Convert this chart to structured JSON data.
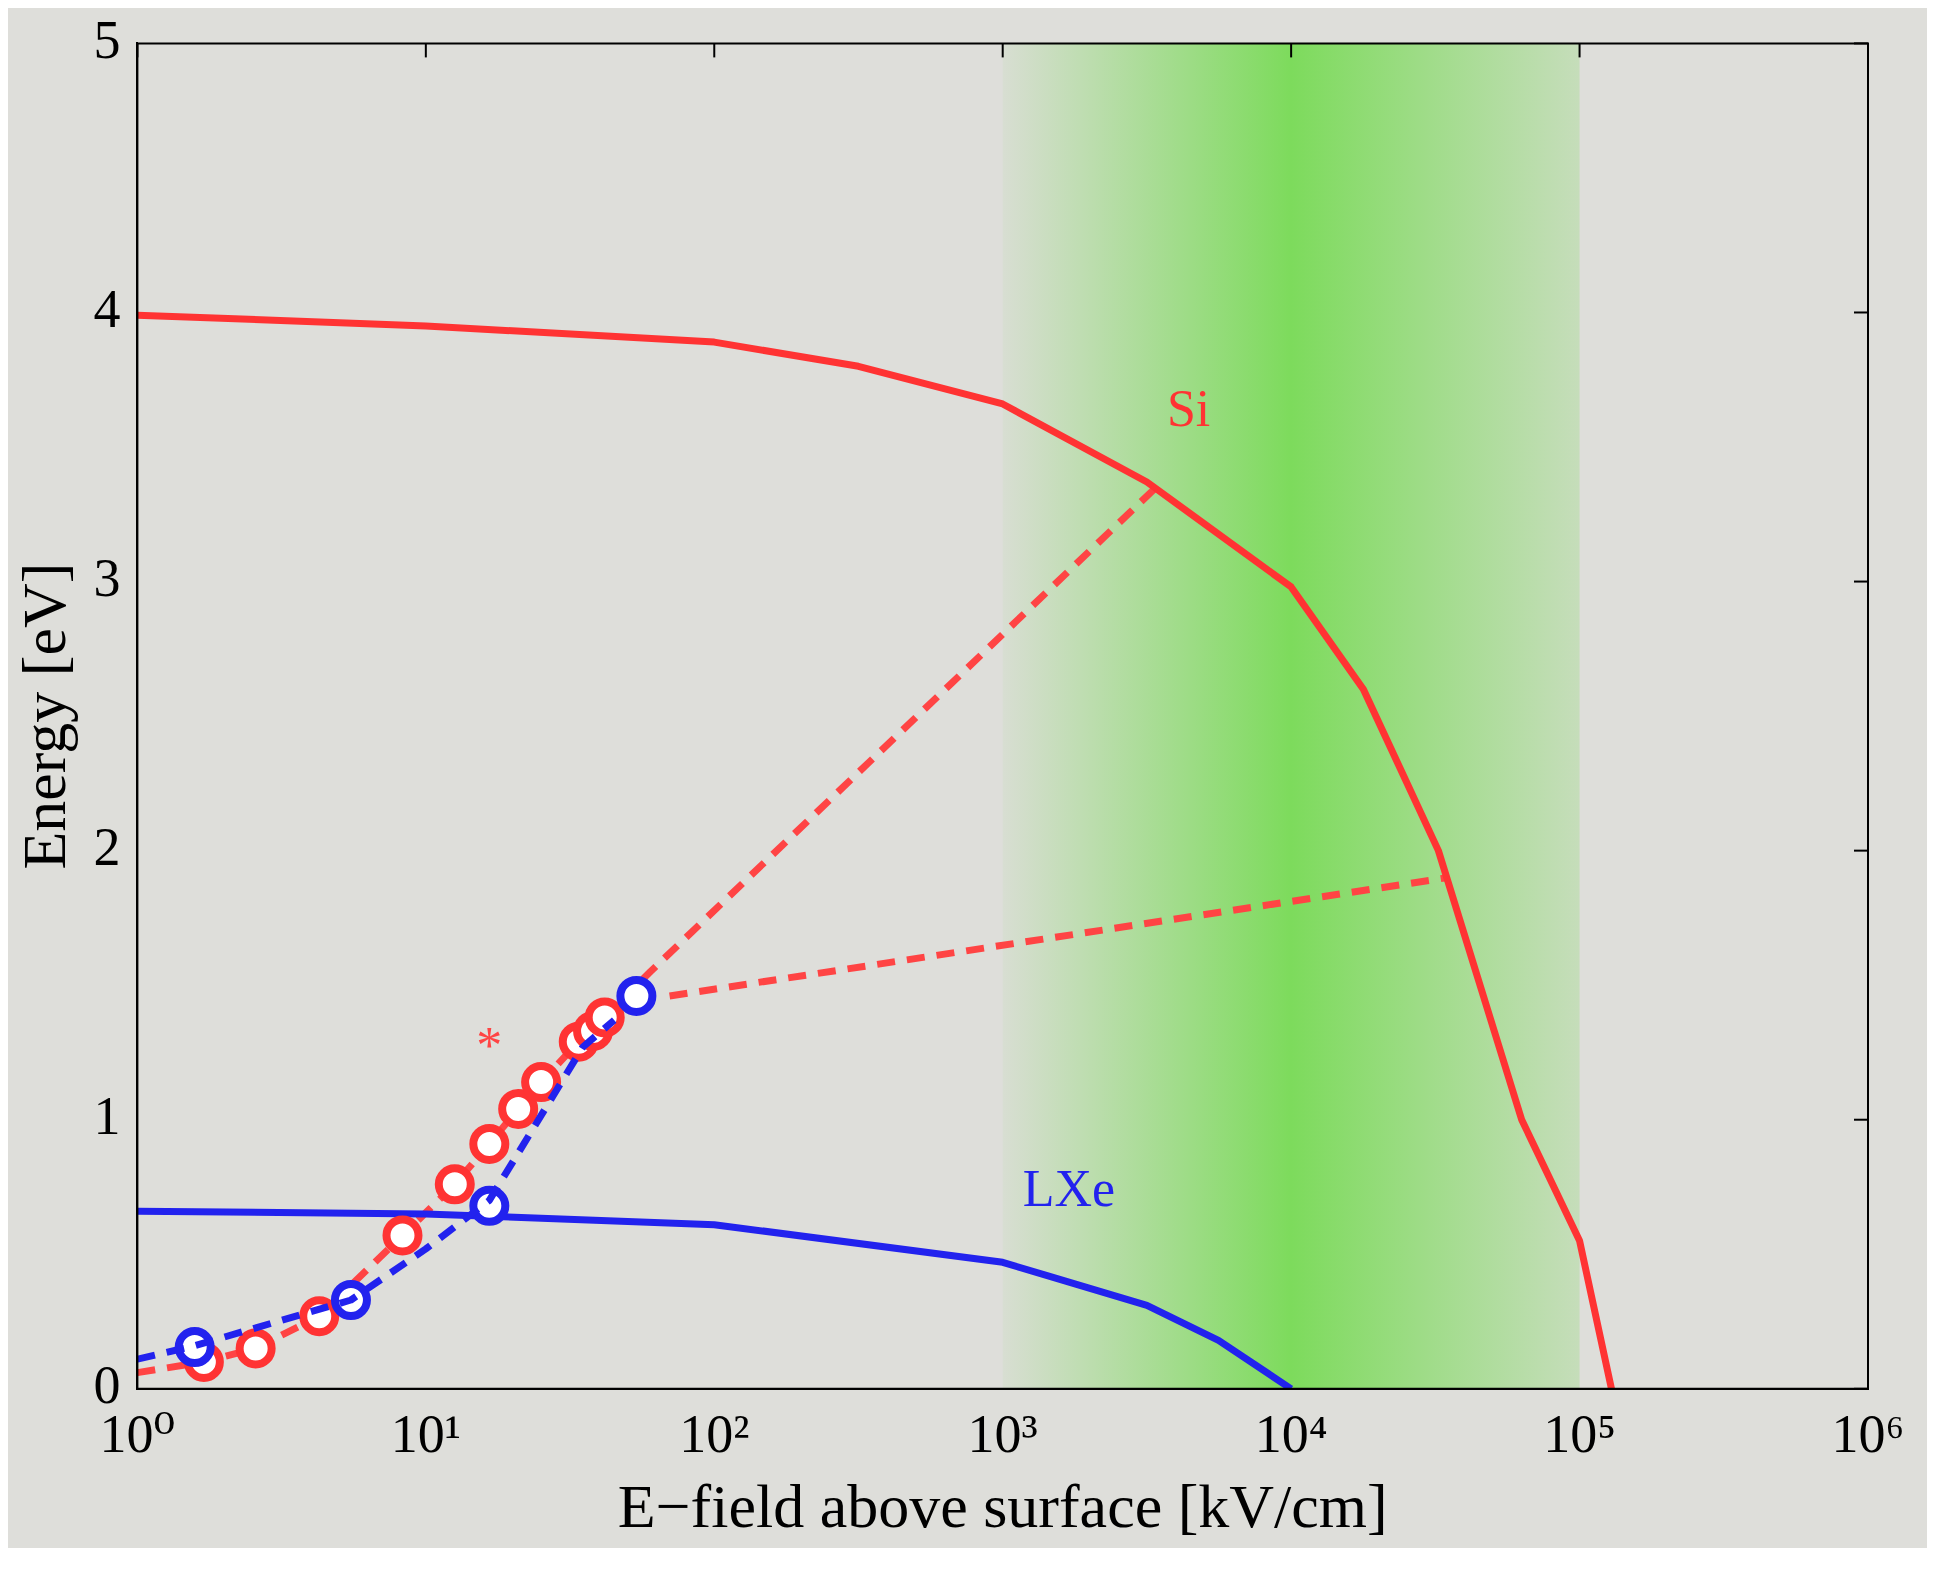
{
  "chart_data": {
    "type": "line",
    "xlabel": "E−field above surface [kV/cm]",
    "ylabel": "Energy [eV]",
    "log": "x",
    "grid": false,
    "legend": false,
    "xlim": [
      1,
      1000000
    ],
    "xticks": [
      {
        "value": 1,
        "label": "10⁰"
      },
      {
        "value": 10,
        "label": "10¹"
      },
      {
        "value": 100,
        "label": "10²"
      },
      {
        "value": 1000,
        "label": "10³"
      },
      {
        "value": 10000,
        "label": "10⁴"
      },
      {
        "value": 100000,
        "label": "10⁵"
      },
      {
        "value": 1000000,
        "label": "10⁶"
      }
    ],
    "ylim": [
      0,
      5
    ],
    "yticks": [
      0,
      1,
      2,
      3,
      4,
      5
    ],
    "bands": [
      {
        "axis": "x",
        "from": 1000,
        "to": 100000,
        "color": "#7ddb5c"
      }
    ],
    "series": [
      {
        "name": "Si",
        "color": "#ff3333",
        "line_style": "solid",
        "marker": "none",
        "x": [
          1,
          10,
          100,
          316,
          1000,
          3162,
          10000,
          17800,
          32400,
          63000,
          100000,
          129000
        ],
        "values": [
          3.99,
          3.95,
          3.89,
          3.8,
          3.66,
          3.37,
          2.98,
          2.6,
          2.0,
          1.0,
          0.55,
          0
        ]
      },
      {
        "name": "LXe",
        "color": "#2222ee",
        "line_style": "solid",
        "marker": "none",
        "x": [
          1,
          10,
          100,
          1000,
          3162,
          5600,
          10000
        ],
        "values": [
          0.66,
          0.65,
          0.61,
          0.47,
          0.31,
          0.18,
          0
        ]
      },
      {
        "color": "#2222ee",
        "line_style": "dashed",
        "marker": "none",
        "x": [
          1,
          1.58,
          5.5,
          10,
          16.6,
          35,
          45
        ],
        "values": [
          0.11,
          0.16,
          0.33,
          0.52,
          0.7,
          1.27,
          1.37
        ]
      },
      {
        "color": "#ff4444",
        "line_style": "dashed",
        "marker": "none",
        "x": [
          1,
          1.7,
          2.57,
          4.27,
          8.3,
          12.6,
          16.6,
          20.9,
          25.1,
          33.9,
          41.7,
          60,
          3400
        ],
        "values": [
          0.06,
          0.1,
          0.15,
          0.27,
          0.57,
          0.76,
          0.91,
          1.04,
          1.14,
          1.29,
          1.38,
          1.55,
          3.35
        ]
      },
      {
        "color": "#ff4444",
        "line_style": "dashed",
        "marker": "none",
        "x": [
          70,
          35000
        ],
        "values": [
          1.46,
          1.9
        ]
      },
      {
        "type": "scatter",
        "color": "#2222ee",
        "marker": "circle",
        "x": [
          1.58,
          5.5,
          16.6,
          53.7
        ],
        "values": [
          0.155,
          0.33,
          0.68,
          1.46
        ]
      },
      {
        "type": "scatter",
        "color": "#ff3333",
        "marker": "circle",
        "x": [
          1.7,
          2.57,
          4.27,
          8.3,
          12.6,
          16.6,
          20.9,
          25.1,
          33.9,
          38,
          41.7
        ],
        "values": [
          0.1,
          0.15,
          0.27,
          0.57,
          0.76,
          0.91,
          1.04,
          1.14,
          1.29,
          1.33,
          1.38
        ]
      }
    ],
    "annotations": [
      {
        "text": "*",
        "x": 16.6,
        "y": 0.91
      }
    ]
  }
}
